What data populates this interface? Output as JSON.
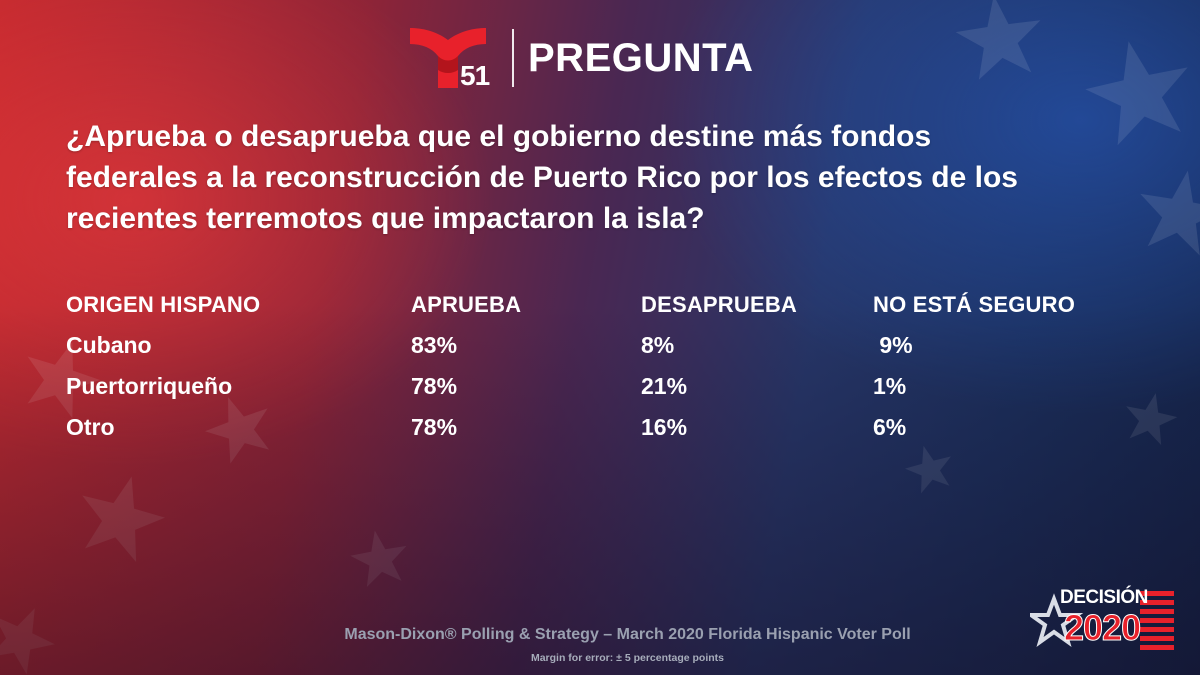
{
  "header": {
    "logo_number": "51",
    "title": "PREGUNTA"
  },
  "question": "¿Aprueba o desaprueba que el gobierno destine más fondos federales a la reconstrucción de Puerto Rico por los efectos de los recientes terremotos que impactaron la isla?",
  "table": {
    "columns": [
      "ORIGEN HISPANO",
      "APRUEBA",
      "DESAPRUEBA",
      "NO ESTÁ SEGURO"
    ],
    "rows": [
      [
        "Cubano",
        "83%",
        "8%",
        " 9%"
      ],
      [
        "Puertorriqueño",
        "78%",
        "21%",
        "1%"
      ],
      [
        "Otro",
        "78%",
        "16%",
        "6%"
      ]
    ]
  },
  "footer": {
    "source": "Mason-Dixon® Polling & Strategy – March 2020 Florida Hispanic Voter Poll",
    "margin": "Margin for error: ± 5 percentage points"
  },
  "badge": {
    "line1": "DECISIÓN",
    "line2": "2020"
  },
  "colors": {
    "brand_red": "#e8212b",
    "text": "#ffffff",
    "footer_text": "#9aa0b0"
  }
}
